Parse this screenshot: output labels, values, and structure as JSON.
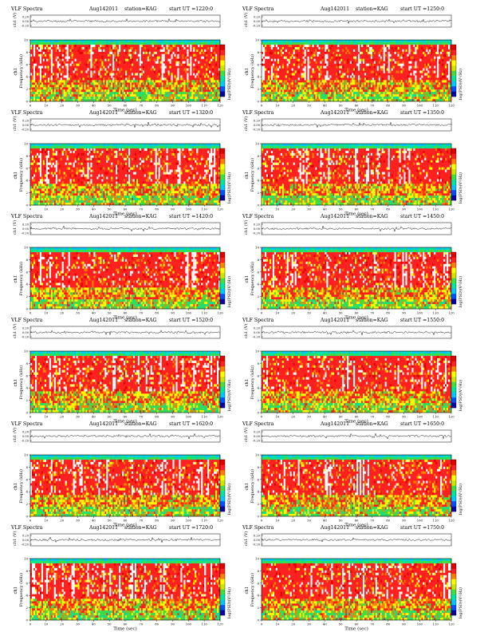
{
  "chart_data": [
    {
      "type": "heatmap",
      "panel_id": "p1",
      "header": {
        "title": "VLF Spectra",
        "date": "Aug142011",
        "station": "station=KAG",
        "start": "start  UT  =1220:0"
      }
    },
    {
      "type": "heatmap",
      "panel_id": "p2",
      "header": {
        "title": "VLF Spectra",
        "date": "Aug142011",
        "station": "station=KAG",
        "start": "start  UT  =1250:0"
      }
    },
    {
      "type": "heatmap",
      "panel_id": "p3",
      "header": {
        "title": "VLF Spectra",
        "date": "Aug142011",
        "station": "station=KAG",
        "start": "start  UT  =1320:0"
      }
    },
    {
      "type": "heatmap",
      "panel_id": "p4",
      "header": {
        "title": "VLF Spectra",
        "date": "Aug142011",
        "station": "station=KAG",
        "start": "start  UT  =1350:0"
      }
    },
    {
      "type": "heatmap",
      "panel_id": "p5",
      "header": {
        "title": "VLF Spectra",
        "date": "Aug142011",
        "station": "station=KAG",
        "start": "start  UT  =1420:0"
      }
    },
    {
      "type": "heatmap",
      "panel_id": "p6",
      "header": {
        "title": "VLF Spectra",
        "date": "Aug142011",
        "station": "station=KAG",
        "start": "start  UT  =1450:0"
      }
    },
    {
      "type": "heatmap",
      "panel_id": "p7",
      "header": {
        "title": "VLF Spectra",
        "date": "Aug142011",
        "station": "station=KAG",
        "start": "start  UT  =1520:0"
      }
    },
    {
      "type": "heatmap",
      "panel_id": "p8",
      "header": {
        "title": "VLF Spectra",
        "date": "Aug142011",
        "station": "station=KAG",
        "start": "start  UT  =1550:0"
      }
    },
    {
      "type": "heatmap",
      "panel_id": "p9",
      "header": {
        "title": "VLF Spectra",
        "date": "Aug142011",
        "station": "station=KAG",
        "start": "start  UT  =1620:0"
      }
    },
    {
      "type": "heatmap",
      "panel_id": "p10",
      "header": {
        "title": "VLF Spectra",
        "date": "Aug142011",
        "station": "station=KAG",
        "start": "start  UT  =1650:0"
      }
    },
    {
      "type": "heatmap",
      "panel_id": "p11",
      "header": {
        "title": "VLF Spectra",
        "date": "Aug142011",
        "station": "station=KAG",
        "start": "start  UT  =1720:0"
      }
    },
    {
      "type": "heatmap",
      "panel_id": "p12",
      "header": {
        "title": "VLF Spectra",
        "date": "Aug142011",
        "station": "station=KAG",
        "start": "start  UT  =1750:0"
      }
    }
  ],
  "shared": {
    "ch_ylabel": "ch1 (V)",
    "ch_ticks": [
      "0.20",
      "0.00",
      "-0.20"
    ],
    "spec_ylabel_left": "ch1",
    "spec_ylabel": "Frequency (kHz)",
    "y_ticks": [
      "0",
      "2",
      "4",
      "6",
      "8",
      "10"
    ],
    "y_range": [
      0,
      10
    ],
    "x_label": "Time (sec)",
    "x_ticks": [
      "0",
      "10",
      "20",
      "30",
      "40",
      "50",
      "60",
      "70",
      "80",
      "90",
      "100",
      "110",
      "120"
    ],
    "x_range": [
      0,
      120
    ],
    "colorbar_label": "log(PSD)(V²/Hz)",
    "colormap": [
      "#0000a0",
      "#0050ff",
      "#00c8ff",
      "#00e6a0",
      "#40e040",
      "#c8e600",
      "#ffff00",
      "#ff8000",
      "#ff2020",
      "#e00000",
      "#ffffff"
    ]
  }
}
